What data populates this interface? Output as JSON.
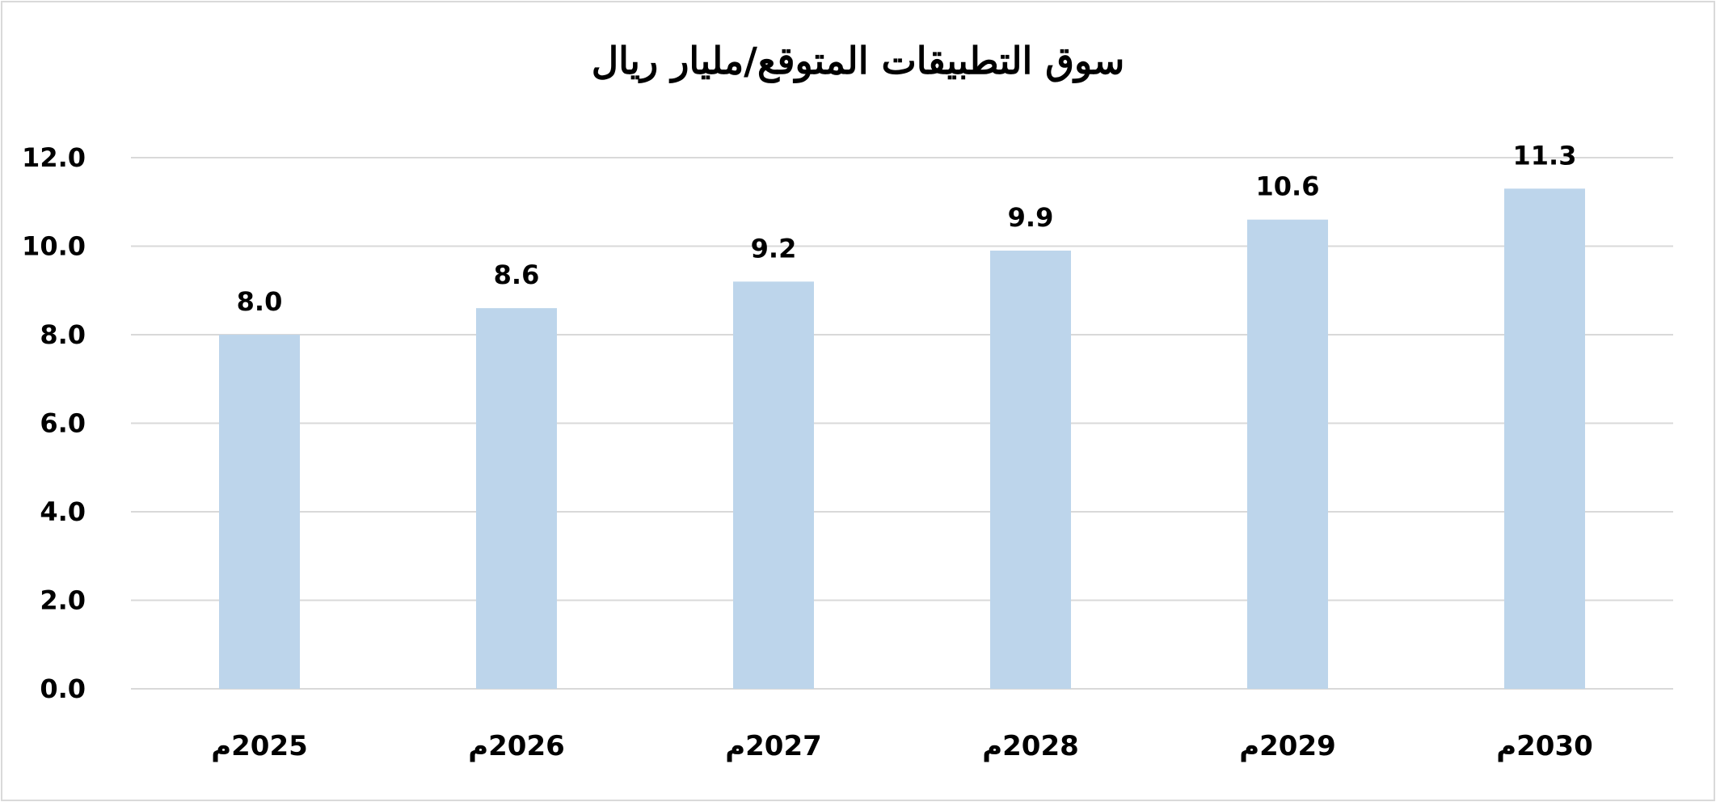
{
  "chart_data": {
    "type": "bar",
    "title": "سوق التطبيقات المتوقع/مليار ريال",
    "xlabel": "",
    "ylabel": "",
    "categories": [
      "2025م",
      "2026م",
      "2027م",
      "2028م",
      "2029م",
      "2030م"
    ],
    "values": [
      8.0,
      8.6,
      9.2,
      9.9,
      10.6,
      11.3
    ],
    "value_labels": [
      "8.0",
      "8.6",
      "9.2",
      "9.9",
      "10.6",
      "11.3"
    ],
    "ylim": [
      0,
      12
    ],
    "yticks": [
      0,
      2,
      4,
      6,
      8,
      10,
      12
    ],
    "ytick_labels": [
      "0.0",
      "2.0",
      "4.0",
      "6.0",
      "8.0",
      "10.0",
      "12.0"
    ],
    "grid": true,
    "legend": "none",
    "colors": {
      "bar": "#bdd5eb",
      "grid": "#d9d9d9",
      "text": "#000000"
    }
  }
}
